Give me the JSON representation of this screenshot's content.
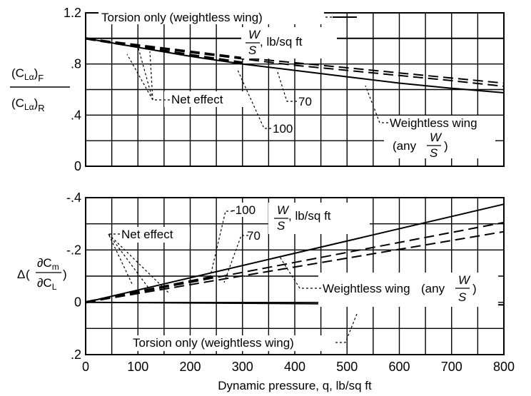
{
  "chart_data": [
    {
      "type": "line",
      "panel": "top",
      "title": "",
      "xlabel": "",
      "ylabel_parts": {
        "num": "(C",
        "num_sub": "Lα",
        "num_tail": ")",
        "num_suffix": "F",
        "den": "(C",
        "den_sub": "Lα",
        "den_tail": ")",
        "den_suffix": "R"
      },
      "xlim": [
        0,
        800
      ],
      "ylim": [
        0,
        1.2
      ],
      "yticks": [
        {
          "v": 0,
          "label": "0"
        },
        {
          "v": 0.4,
          "label": ".4"
        },
        {
          "v": 0.8,
          "label": ".8"
        },
        {
          "v": 1.2,
          "label": "1.2"
        }
      ],
      "series": [
        {
          "style": "solid",
          "x": [
            0,
            800
          ],
          "y": [
            1.0,
            1.0
          ]
        },
        {
          "style": "solid",
          "x": [
            0,
            100,
            200,
            300,
            400,
            500,
            600,
            700,
            800
          ],
          "y": [
            1.0,
            0.93,
            0.86,
            0.8,
            0.75,
            0.7,
            0.65,
            0.61,
            0.575
          ]
        },
        {
          "style": "dash",
          "x": [
            0,
            100,
            200,
            300,
            400,
            500,
            600,
            700,
            800
          ],
          "y": [
            1.0,
            0.95,
            0.9,
            0.85,
            0.81,
            0.77,
            0.73,
            0.69,
            0.65
          ]
        },
        {
          "style": "dash",
          "x": [
            0,
            100,
            200,
            300,
            400,
            500,
            600,
            700,
            800
          ],
          "y": [
            1.0,
            0.945,
            0.89,
            0.84,
            0.79,
            0.75,
            0.71,
            0.67,
            0.625
          ]
        },
        {
          "style": "dashbold",
          "x": [
            0,
            100,
            200,
            300
          ],
          "y": [
            1.0,
            0.935,
            0.87,
            0.81
          ]
        }
      ],
      "annotations": {
        "torsion": "Torsion only (weightless wing)",
        "ws_unit": ", lb/sq ft",
        "net_effect": "Net effect",
        "label_70": "70",
        "label_100": "100",
        "weightless": "Weightless wing",
        "any_open": "(any",
        "any_close": ")",
        "w": "W",
        "s": "S"
      }
    },
    {
      "type": "line",
      "panel": "bottom",
      "title": "",
      "xlabel": "Dynamic pressure, q, lb/sq ft",
      "ylabel_parts": {
        "delta": "Δ",
        "num": "∂C",
        "num_sub": "m",
        "den": "∂C",
        "den_sub": "L"
      },
      "xlim": [
        0,
        800
      ],
      "ylim": [
        0.2,
        -0.4
      ],
      "yticks": [
        {
          "v": -0.4,
          "label": "-.4"
        },
        {
          "v": -0.2,
          "label": "-.2"
        },
        {
          "v": 0,
          "label": "0"
        },
        {
          "v": 0.2,
          "label": ".2"
        }
      ],
      "xticks": [
        {
          "v": 0,
          "label": "0"
        },
        {
          "v": 100,
          "label": "100"
        },
        {
          "v": 200,
          "label": "200"
        },
        {
          "v": 300,
          "label": "300"
        },
        {
          "v": 400,
          "label": "400"
        },
        {
          "v": 500,
          "label": "500"
        },
        {
          "v": 600,
          "label": "600"
        },
        {
          "v": 700,
          "label": "700"
        },
        {
          "v": 800,
          "label": "800"
        }
      ],
      "series": [
        {
          "style": "solid",
          "x": [
            0,
            800
          ],
          "y": [
            0,
            0.01
          ]
        },
        {
          "style": "solid",
          "x": [
            0,
            800
          ],
          "y": [
            0,
            -0.375
          ]
        },
        {
          "style": "dash",
          "x": [
            0,
            800
          ],
          "y": [
            0,
            -0.305
          ]
        },
        {
          "style": "dash",
          "x": [
            0,
            800
          ],
          "y": [
            0,
            -0.27
          ]
        },
        {
          "style": "dashbold",
          "x": [
            0,
            250
          ],
          "y": [
            0,
            -0.1
          ]
        }
      ],
      "annotations": {
        "label_100": "-100",
        "ws_unit": ", lb/sq ft",
        "net_effect": "Net effect",
        "label_70": "70",
        "weightless": "Weightless wing",
        "any_open": "(any",
        "any_close": ")",
        "torsion": "Torsion only (weightless wing)",
        "w": "W",
        "s": "S"
      }
    }
  ]
}
